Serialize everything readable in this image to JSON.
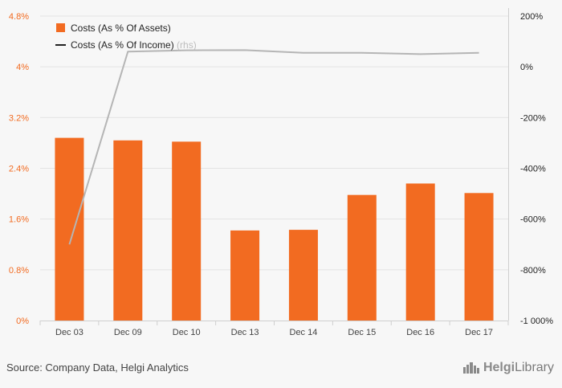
{
  "chart_data": {
    "type": "bar",
    "categories": [
      "Dec 03",
      "Dec 09",
      "Dec 10",
      "Dec 13",
      "Dec 14",
      "Dec 15",
      "Dec 16",
      "Dec 17"
    ],
    "series": [
      {
        "name": "Costs (As % Of Assets)",
        "type": "bar",
        "axis": "left",
        "color": "#f26b21",
        "values": [
          2.88,
          2.84,
          2.82,
          1.42,
          1.43,
          1.98,
          2.16,
          2.01
        ]
      },
      {
        "name": "Costs (As % Of Income)",
        "type": "line",
        "axis": "right",
        "color": "#b5b5b5",
        "values": [
          -700,
          60,
          65,
          66,
          55,
          55,
          50,
          55
        ]
      }
    ],
    "legend_rhs_note": "(rhs)",
    "left_axis": {
      "ticks": [
        "0%",
        "0.8%",
        "1.6%",
        "2.4%",
        "3.2%",
        "4%",
        "4.8%"
      ],
      "ylim": [
        0,
        4.8
      ]
    },
    "right_axis": {
      "ticks": [
        "-1 000%",
        "-800%",
        "-600%",
        "-400%",
        "-200%",
        "0%",
        "200%"
      ],
      "ylim": [
        -1000,
        200
      ]
    },
    "grid": true,
    "legend_position": "top-left"
  },
  "footer": {
    "source": "Source: Company Data, Helgi Analytics",
    "brand_part1": "Helgi",
    "brand_part2": "Library"
  },
  "colors": {
    "accent": "#f26b21",
    "line": "#b5b5b5",
    "grid": "#e3e3e3"
  },
  "icons": {
    "brand_logo": "library-skyline-icon"
  }
}
